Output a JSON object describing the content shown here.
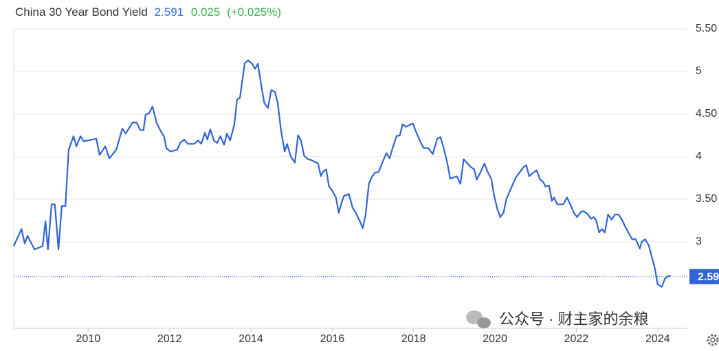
{
  "chart_data": {
    "type": "line",
    "title": "China 30 Year Bond Yield",
    "last_value": 2.591,
    "change": 0.025,
    "change_percent": "(+0.025%)",
    "watermark": "公众号 · 财主家的余粮",
    "color": "#2f64d6",
    "grid": true,
    "xlim": [
      2008.17,
      2024.73
    ],
    "ylim": [
      2,
      5.5
    ],
    "xticks": [
      2010,
      2012,
      2014,
      2016,
      2018,
      2020,
      2022,
      2024
    ],
    "yticks": [
      3,
      {
        "value": 3.5,
        "label": "3.50"
      },
      4,
      {
        "value": 4.5,
        "label": "4.50"
      },
      5,
      {
        "value": 5.5,
        "label": "5.50"
      }
    ],
    "x": [
      2008.17,
      2008.36,
      2008.44,
      2008.51,
      2008.68,
      2008.88,
      2008.95,
      2009.01,
      2009.1,
      2009.18,
      2009.27,
      2009.35,
      2009.44,
      2009.52,
      2009.64,
      2009.71,
      2009.81,
      2009.89,
      2010.2,
      2010.28,
      2010.42,
      2010.52,
      2010.69,
      2010.84,
      2010.92,
      2011.09,
      2011.19,
      2011.28,
      2011.36,
      2011.41,
      2011.5,
      2011.58,
      2011.68,
      2011.77,
      2011.87,
      2011.92,
      2012.02,
      2012.19,
      2012.26,
      2012.36,
      2012.45,
      2012.61,
      2012.7,
      2012.78,
      2012.87,
      2012.93,
      2013.0,
      2013.09,
      2013.17,
      2013.25,
      2013.34,
      2013.41,
      2013.49,
      2013.59,
      2013.66,
      2013.73,
      2013.85,
      2013.93,
      2014.03,
      2014.1,
      2014.17,
      2014.25,
      2014.33,
      2014.42,
      2014.5,
      2014.59,
      2014.66,
      2014.74,
      2014.83,
      2014.89,
      2014.98,
      2015.08,
      2015.16,
      2015.23,
      2015.31,
      2015.4,
      2015.48,
      2015.65,
      2015.72,
      2015.77,
      2015.85,
      2015.92,
      2016.0,
      2016.09,
      2016.16,
      2016.23,
      2016.29,
      2016.41,
      2016.5,
      2016.58,
      2016.68,
      2016.75,
      2016.82,
      2016.9,
      2016.97,
      2017.05,
      2017.14,
      2017.24,
      2017.33,
      2017.41,
      2017.49,
      2017.58,
      2017.66,
      2017.73,
      2017.81,
      2017.98,
      2018.07,
      2018.17,
      2018.25,
      2018.36,
      2018.47,
      2018.58,
      2018.66,
      2018.74,
      2018.83,
      2018.9,
      2019.06,
      2019.15,
      2019.23,
      2019.4,
      2019.49,
      2019.55,
      2019.64,
      2019.74,
      2019.82,
      2019.91,
      2019.98,
      2020.06,
      2020.13,
      2020.21,
      2020.28,
      2020.37,
      2020.45,
      2020.52,
      2020.6,
      2020.69,
      2020.77,
      2020.84,
      2020.94,
      2021.02,
      2021.11,
      2021.19,
      2021.24,
      2021.33,
      2021.4,
      2021.45,
      2021.53,
      2021.68,
      2021.77,
      2021.84,
      2021.94,
      2022.02,
      2022.11,
      2022.17,
      2022.27,
      2022.36,
      2022.43,
      2022.49,
      2022.56,
      2022.63,
      2022.7,
      2022.78,
      2022.87,
      2022.95,
      2023.04,
      2023.12,
      2023.2,
      2023.29,
      2023.37,
      2023.46,
      2023.56,
      2023.61,
      2023.69,
      2023.78,
      2023.84,
      2023.93,
      2024.0,
      2024.1,
      2024.18,
      2024.27,
      2024.32
    ],
    "values": [
      2.95,
      3.15,
      2.98,
      3.07,
      2.91,
      2.95,
      3.24,
      2.91,
      3.44,
      3.44,
      2.91,
      3.42,
      3.42,
      4.08,
      4.24,
      4.12,
      4.24,
      4.18,
      4.21,
      4.02,
      4.12,
      3.98,
      4.08,
      4.33,
      4.27,
      4.4,
      4.4,
      4.31,
      4.31,
      4.49,
      4.51,
      4.59,
      4.4,
      4.31,
      4.23,
      4.1,
      4.06,
      4.08,
      4.16,
      4.2,
      4.15,
      4.15,
      4.19,
      4.15,
      4.28,
      4.2,
      4.32,
      4.19,
      4.16,
      4.24,
      4.14,
      4.27,
      4.19,
      4.37,
      4.67,
      4.69,
      5.1,
      5.13,
      5.09,
      5.03,
      5.09,
      4.85,
      4.63,
      4.57,
      4.78,
      4.76,
      4.63,
      4.31,
      4.06,
      4.15,
      4.0,
      3.93,
      4.25,
      4.19,
      4.01,
      3.97,
      3.96,
      3.92,
      3.77,
      3.82,
      3.85,
      3.65,
      3.6,
      3.52,
      3.34,
      3.46,
      3.54,
      3.56,
      3.4,
      3.34,
      3.24,
      3.16,
      3.32,
      3.68,
      3.76,
      3.81,
      3.82,
      3.94,
      4.04,
      3.98,
      4.11,
      4.24,
      4.25,
      4.38,
      4.35,
      4.39,
      4.28,
      4.17,
      4.1,
      4.1,
      4.03,
      4.21,
      4.23,
      4.1,
      3.92,
      3.74,
      3.77,
      3.68,
      3.97,
      3.88,
      3.85,
      3.73,
      3.81,
      3.92,
      3.82,
      3.74,
      3.54,
      3.38,
      3.29,
      3.34,
      3.5,
      3.6,
      3.69,
      3.76,
      3.81,
      3.87,
      3.9,
      3.77,
      3.81,
      3.84,
      3.73,
      3.7,
      3.65,
      3.66,
      3.48,
      3.52,
      3.44,
      3.44,
      3.52,
      3.45,
      3.34,
      3.29,
      3.35,
      3.36,
      3.33,
      3.27,
      3.29,
      3.25,
      3.11,
      3.15,
      3.11,
      3.32,
      3.26,
      3.32,
      3.32,
      3.26,
      3.18,
      3.1,
      3.03,
      3.03,
      2.92,
      3.0,
      3.03,
      2.96,
      2.85,
      2.69,
      2.5,
      2.47,
      2.57,
      2.6,
      2.6
    ]
  }
}
